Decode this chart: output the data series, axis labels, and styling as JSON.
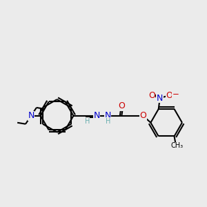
{
  "bg_color": "#ebebeb",
  "bond_color": "#000000",
  "bond_width": 1.5,
  "atom_colors": {
    "N": "#0000cc",
    "O": "#cc0000",
    "C": "#000000",
    "H": "#6aafaf"
  },
  "font_size": 7.5,
  "fig_size": [
    3.0,
    3.0
  ],
  "dpi": 100
}
